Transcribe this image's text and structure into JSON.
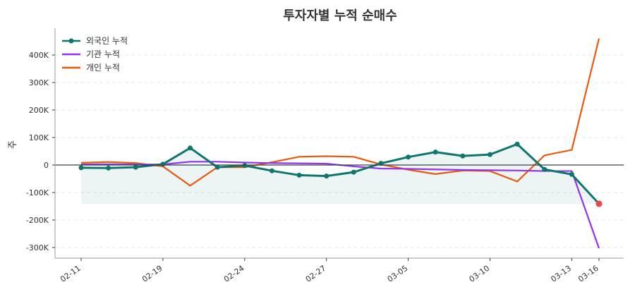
{
  "chart_data": {
    "type": "line",
    "title": "투자자별 누적 순매수",
    "xlabel": "",
    "ylabel": "주",
    "ylim": [
      -340000,
      490000
    ],
    "grid": "horizontal dashed",
    "legend": "top-left",
    "x_index": [
      0,
      1,
      2,
      3,
      4,
      5,
      6,
      7,
      8,
      9,
      10,
      11,
      12,
      13,
      14,
      15,
      16,
      17,
      18,
      19
    ],
    "xticks": [
      {
        "i": 0,
        "label": "02-11"
      },
      {
        "i": 3,
        "label": "02-19"
      },
      {
        "i": 6,
        "label": "02-24"
      },
      {
        "i": 9,
        "label": "02-27"
      },
      {
        "i": 12,
        "label": "03-05"
      },
      {
        "i": 15,
        "label": "03-10"
      },
      {
        "i": 18,
        "label": "03-13"
      },
      {
        "i": 19,
        "label": "03-16"
      }
    ],
    "yticks": [
      {
        "v": -300000,
        "label": "-300K"
      },
      {
        "v": -200000,
        "label": "-200K"
      },
      {
        "v": -100000,
        "label": "-100K"
      },
      {
        "v": 0,
        "label": "0"
      },
      {
        "v": 100000,
        "label": "100K"
      },
      {
        "v": 200000,
        "label": "200K"
      },
      {
        "v": 300000,
        "label": "300K"
      },
      {
        "v": 400000,
        "label": "400K"
      }
    ],
    "series": [
      {
        "name": "외국인 누적",
        "color": "#0f766e",
        "markers": true,
        "fill": true,
        "values": [
          -10000,
          -11000,
          -8000,
          3000,
          62000,
          -8000,
          -2000,
          -21000,
          -37000,
          -40000,
          -26000,
          6000,
          29000,
          47000,
          33000,
          38000,
          76000,
          -16000,
          -34000,
          -141000
        ],
        "last_marker_color": "#ef4444"
      },
      {
        "name": "기관 누적",
        "color": "#9333ea",
        "markers": false,
        "values": [
          2000,
          3000,
          2000,
          2000,
          12000,
          12000,
          9000,
          7000,
          6000,
          5000,
          -5000,
          -13000,
          -14000,
          -16000,
          -18000,
          -19000,
          -20000,
          -22000,
          -22000,
          -303000
        ]
      },
      {
        "name": "개인 누적",
        "color": "#ea580c",
        "markers": false,
        "values": [
          8000,
          11000,
          7000,
          -5000,
          -75000,
          -8000,
          -8000,
          10000,
          30000,
          32000,
          30000,
          2000,
          -17000,
          -33000,
          -20000,
          -22000,
          -60000,
          35000,
          55000,
          460000
        ]
      }
    ]
  }
}
